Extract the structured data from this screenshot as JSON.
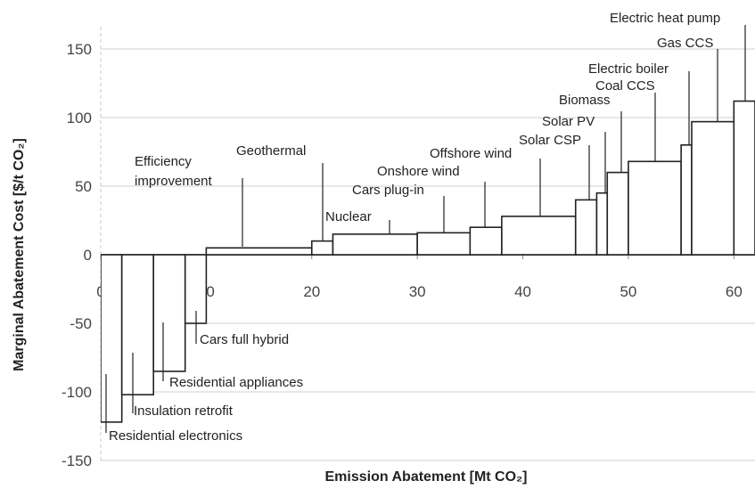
{
  "chart_data": {
    "type": "variable-width-bar",
    "xlabel": "Emission Abatement [Mt CO₂]",
    "ylabel": "Marginal Abatement Cost [$/t CO₂]",
    "categories": [
      "Residential electronics",
      "Insulation retrofit",
      "Residential appliances",
      "Cars full hybrid",
      "Efficiency improvement",
      "Geothermal",
      "Nuclear",
      "Cars plug-in",
      "Onshore wind",
      "Offshore wind",
      "Solar CSP",
      "Solar PV",
      "Biomass",
      "Coal CCS",
      "Electric boiler",
      "Gas CCS",
      "Electric heat pump"
    ],
    "widths": [
      2,
      3,
      3,
      2,
      10,
      2,
      8,
      5,
      3,
      7,
      2,
      1,
      2,
      5,
      1,
      4,
      2
    ],
    "values": [
      -122,
      -102,
      -85,
      -50,
      5,
      10,
      15,
      16,
      20,
      28,
      40,
      45,
      60,
      68,
      80,
      97,
      112
    ],
    "xlim": [
      0,
      62
    ],
    "xticks": [
      0,
      10,
      20,
      30,
      40,
      50,
      60
    ],
    "ylim": [
      -150,
      150
    ],
    "yticks": [
      -150,
      -100,
      -50,
      0,
      50,
      100,
      150
    ],
    "grid": true,
    "color": "#ffffff"
  }
}
